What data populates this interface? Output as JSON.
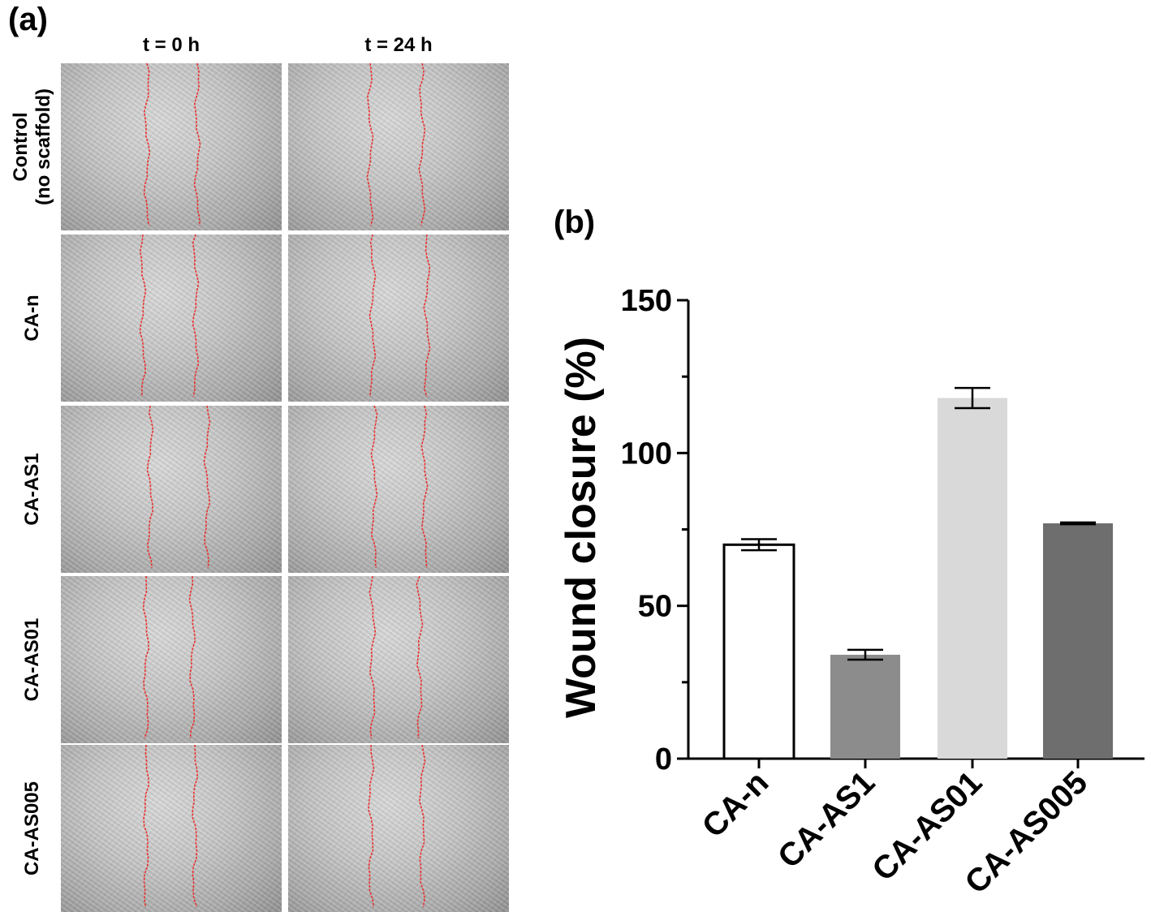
{
  "panel_a": {
    "letter": "(a)",
    "columns": [
      "t = 0 h",
      "t = 24 h"
    ],
    "rows": [
      {
        "label": "Control\n(no scaffold)"
      },
      {
        "label": "CA-n"
      },
      {
        "label": "CA-AS1"
      },
      {
        "label": "CA-AS01"
      },
      {
        "label": "CA-AS005"
      }
    ],
    "wound_line_color": "#e8312f"
  },
  "panel_b": {
    "letter": "(b)"
  },
  "chart_data": {
    "type": "bar",
    "title": "",
    "xlabel": "",
    "ylabel": "Wound closure (%)",
    "ylim": [
      0,
      150
    ],
    "yticks": [
      0,
      50,
      100,
      150
    ],
    "categories": [
      "CA-n",
      "CA-AS1",
      "CA-AS01",
      "CA-AS005"
    ],
    "values": [
      70,
      34,
      118,
      77
    ],
    "errors": [
      1.8,
      1.6,
      3.3,
      0.3
    ],
    "bar_colors": [
      "#ffffff",
      "#8c8c8c",
      "#d9d9d9",
      "#6e6e6e"
    ],
    "grid": false
  }
}
